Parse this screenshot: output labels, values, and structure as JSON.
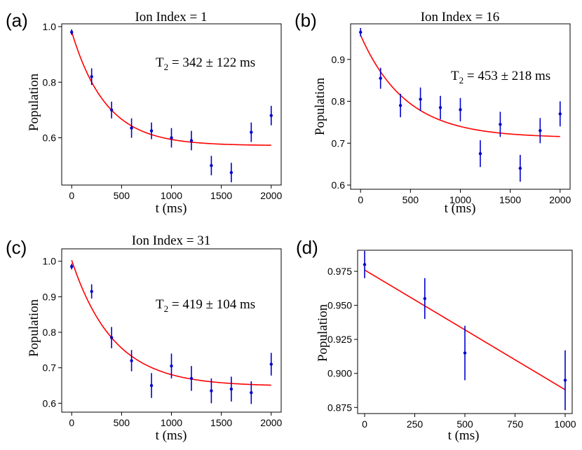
{
  "figure": {
    "panel_count": 4
  },
  "chart_data": [
    {
      "panel_label": "(a)",
      "type": "scatter",
      "title": "Ion Index = 1",
      "xlabel": "t (ms)",
      "ylabel": "Population",
      "xlim": [
        -100,
        2100
      ],
      "ylim": [
        0.43,
        1.01
      ],
      "xticks": [
        0,
        500,
        1000,
        1500,
        2000
      ],
      "xtick_labels": [
        "0",
        "500",
        "1000",
        "1500",
        "2000"
      ],
      "yticks": [
        0.6,
        0.8,
        1.0
      ],
      "ytick_labels": [
        "0.6",
        "0.8",
        "1.0"
      ],
      "annotation": {
        "main": "T",
        "sub": "2",
        "rest": " = 342 ± 122 ms"
      },
      "series": [
        {
          "name": "data",
          "color": "#0000cc",
          "x": [
            0,
            200,
            400,
            600,
            800,
            1000,
            1200,
            1400,
            1600,
            1800,
            2000
          ],
          "y": [
            0.98,
            0.82,
            0.7,
            0.635,
            0.625,
            0.6,
            0.59,
            0.5,
            0.475,
            0.62,
            0.68
          ],
          "yerr": [
            0.01,
            0.03,
            0.03,
            0.035,
            0.03,
            0.035,
            0.035,
            0.035,
            0.035,
            0.035,
            0.035
          ]
        }
      ],
      "fit": {
        "type": "exponential_decay",
        "color": "#ff0000",
        "A": 0.41,
        "tau": 342,
        "C": 0.572
      }
    },
    {
      "panel_label": "(b)",
      "type": "scatter",
      "title": "Ion Index = 16",
      "xlabel": "t (ms)",
      "ylabel": "Population",
      "xlim": [
        -100,
        2100
      ],
      "ylim": [
        0.59,
        0.985
      ],
      "xticks": [
        0,
        500,
        1000,
        1500,
        2000
      ],
      "xtick_labels": [
        "0",
        "500",
        "1000",
        "1500",
        "2000"
      ],
      "yticks": [
        0.6,
        0.7,
        0.8,
        0.9
      ],
      "ytick_labels": [
        "0.6",
        "0.7",
        "0.8",
        "0.9"
      ],
      "annotation": {
        "main": "T",
        "sub": "2",
        "rest": " = 453 ± 218 ms"
      },
      "series": [
        {
          "name": "data",
          "color": "#0000cc",
          "x": [
            0,
            200,
            400,
            600,
            800,
            1000,
            1200,
            1400,
            1600,
            1800,
            2000
          ],
          "y": [
            0.965,
            0.855,
            0.79,
            0.805,
            0.785,
            0.78,
            0.675,
            0.745,
            0.64,
            0.73,
            0.77
          ],
          "yerr": [
            0.01,
            0.025,
            0.028,
            0.028,
            0.028,
            0.028,
            0.032,
            0.03,
            0.032,
            0.03,
            0.03
          ]
        }
      ],
      "fit": {
        "type": "exponential_decay",
        "color": "#ff0000",
        "A": 0.245,
        "tau": 453,
        "C": 0.713
      }
    },
    {
      "panel_label": "(c)",
      "type": "scatter",
      "title": "Ion Index = 31",
      "xlabel": "t (ms)",
      "ylabel": "Population",
      "xlim": [
        -100,
        2100
      ],
      "ylim": [
        0.575,
        1.035
      ],
      "xticks": [
        0,
        500,
        1000,
        1500,
        2000
      ],
      "xtick_labels": [
        "0",
        "500",
        "1000",
        "1500",
        "2000"
      ],
      "yticks": [
        0.6,
        0.7,
        0.8,
        0.9,
        1.0
      ],
      "ytick_labels": [
        "0.6",
        "0.7",
        "0.8",
        "0.9",
        "1.0"
      ],
      "annotation": {
        "main": "T",
        "sub": "2",
        "rest": " = 419 ± 104 ms"
      },
      "series": [
        {
          "name": "data",
          "color": "#0000cc",
          "x": [
            0,
            200,
            400,
            600,
            800,
            1000,
            1200,
            1400,
            1600,
            1800,
            2000
          ],
          "y": [
            0.985,
            0.915,
            0.785,
            0.72,
            0.65,
            0.705,
            0.67,
            0.635,
            0.64,
            0.63,
            0.71
          ],
          "yerr": [
            0.008,
            0.02,
            0.03,
            0.03,
            0.035,
            0.035,
            0.035,
            0.035,
            0.035,
            0.032,
            0.032
          ]
        }
      ],
      "fit": {
        "type": "exponential_decay",
        "color": "#ff0000",
        "A": 0.355,
        "tau": 419,
        "C": 0.648
      }
    },
    {
      "panel_label": "(d)",
      "type": "scatter",
      "title": "",
      "xlabel": "t (ms)",
      "ylabel": "Population",
      "xlim": [
        -35,
        1035
      ],
      "ylim": [
        0.8705,
        0.9905
      ],
      "xticks": [
        0,
        250,
        500,
        750,
        1000
      ],
      "xtick_labels": [
        "0",
        "250",
        "500",
        "750",
        "1000"
      ],
      "yticks": [
        0.875,
        0.9,
        0.925,
        0.95,
        0.975
      ],
      "ytick_labels": [
        "0.875",
        "0.900",
        "0.925",
        "0.950",
        "0.975"
      ],
      "annotation": null,
      "series": [
        {
          "name": "data",
          "color": "#0000cc",
          "x": [
            0,
            300,
            500,
            1000
          ],
          "y": [
            0.98,
            0.955,
            0.915,
            0.895
          ],
          "yerr": [
            0.01,
            0.015,
            0.02,
            0.022
          ]
        }
      ],
      "fit": {
        "type": "linear",
        "color": "#ff0000",
        "x": [
          0,
          1000
        ],
        "y": [
          0.976,
          0.888
        ]
      }
    }
  ]
}
